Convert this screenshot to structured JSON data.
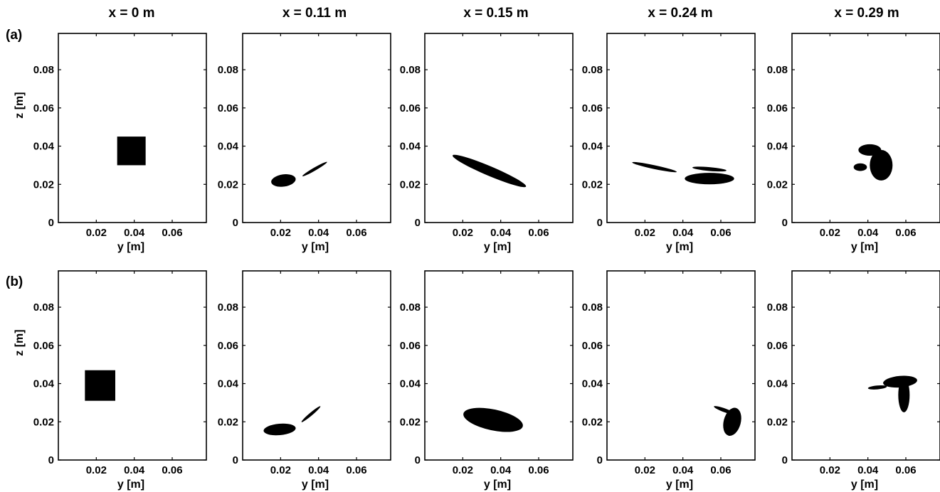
{
  "figure": {
    "column_titles": [
      "x = 0 m",
      "x = 0.11 m",
      "x = 0.15 m",
      "x = 0.24 m",
      "x = 0.29 m"
    ],
    "row_labels": [
      "(a)",
      "(b)"
    ]
  },
  "chart_data": [
    {
      "type": "scatter",
      "row": "(a)",
      "column": "x = 0 m",
      "xlabel": "y [m]",
      "ylabel": "z [m]",
      "xlim": [
        0,
        0.078
      ],
      "ylim": [
        0,
        0.099
      ],
      "xticks": [
        0.02,
        0.04,
        0.06
      ],
      "yticks": [
        0,
        0.02,
        0.04,
        0.06,
        0.08
      ],
      "blobs": [
        {
          "shape": "rect",
          "y": [
            0.031,
            0.046
          ],
          "z": [
            0.03,
            0.045
          ]
        }
      ]
    },
    {
      "type": "scatter",
      "row": "(a)",
      "column": "x = 0.11 m",
      "xlabel": "y [m]",
      "ylabel": "",
      "xlim": [
        0,
        0.078
      ],
      "ylim": [
        0,
        0.099
      ],
      "xticks": [
        0.02,
        0.04,
        0.06
      ],
      "yticks": [
        0,
        0.02,
        0.04,
        0.06,
        0.08
      ],
      "blobs": [
        {
          "shape": "ellipse",
          "y": 0.0215,
          "z": 0.022,
          "ry": 0.0065,
          "rz": 0.0032,
          "rot": -8
        },
        {
          "shape": "ellipse",
          "y": 0.038,
          "z": 0.028,
          "ry": 0.0075,
          "rz": 0.0008,
          "rot": -30
        }
      ]
    },
    {
      "type": "scatter",
      "row": "(a)",
      "column": "x = 0.15 m",
      "xlabel": "y [m]",
      "ylabel": "",
      "xlim": [
        0,
        0.078
      ],
      "ylim": [
        0,
        0.099
      ],
      "xticks": [
        0.02,
        0.04,
        0.06
      ],
      "yticks": [
        0,
        0.02,
        0.04,
        0.06,
        0.08
      ],
      "blobs": [
        {
          "shape": "ellipse",
          "y": 0.034,
          "z": 0.027,
          "ry": 0.021,
          "rz": 0.0025,
          "rot": 23
        }
      ]
    },
    {
      "type": "scatter",
      "row": "(a)",
      "column": "x = 0.24 m",
      "xlabel": "y [m]",
      "ylabel": "",
      "xlim": [
        0,
        0.078
      ],
      "ylim": [
        0,
        0.099
      ],
      "xticks": [
        0.02,
        0.04,
        0.06
      ],
      "yticks": [
        0,
        0.02,
        0.04,
        0.06,
        0.08
      ],
      "blobs": [
        {
          "shape": "ellipse",
          "y": 0.054,
          "z": 0.023,
          "ry": 0.013,
          "rz": 0.003,
          "rot": 0
        },
        {
          "shape": "ellipse",
          "y": 0.054,
          "z": 0.028,
          "ry": 0.009,
          "rz": 0.001,
          "rot": 5
        },
        {
          "shape": "ellipse",
          "y": 0.025,
          "z": 0.029,
          "ry": 0.012,
          "rz": 0.001,
          "rot": 12
        }
      ]
    },
    {
      "type": "scatter",
      "row": "(a)",
      "column": "x = 0.29 m",
      "xlabel": "y [m]",
      "ylabel": "",
      "xlim": [
        0,
        0.078
      ],
      "ylim": [
        0,
        0.099
      ],
      "xticks": [
        0.02,
        0.04,
        0.06
      ],
      "yticks": [
        0,
        0.02,
        0.04,
        0.06,
        0.08
      ],
      "blobs": [
        {
          "shape": "ellipse",
          "y": 0.047,
          "z": 0.03,
          "ry": 0.006,
          "rz": 0.008,
          "rot": 0
        },
        {
          "shape": "ellipse",
          "y": 0.041,
          "z": 0.038,
          "ry": 0.006,
          "rz": 0.003,
          "rot": 0
        },
        {
          "shape": "ellipse",
          "y": 0.036,
          "z": 0.029,
          "ry": 0.0035,
          "rz": 0.002,
          "rot": 0
        }
      ]
    },
    {
      "type": "scatter",
      "row": "(b)",
      "column": "x = 0 m",
      "xlabel": "y [m]",
      "ylabel": "z [m]",
      "xlim": [
        0,
        0.078
      ],
      "ylim": [
        0,
        0.099
      ],
      "xticks": [
        0.02,
        0.04,
        0.06
      ],
      "yticks": [
        0,
        0.02,
        0.04,
        0.06,
        0.08
      ],
      "blobs": [
        {
          "shape": "rect",
          "y": [
            0.014,
            0.03
          ],
          "z": [
            0.031,
            0.047
          ]
        }
      ]
    },
    {
      "type": "scatter",
      "row": "(b)",
      "column": "x = 0.11 m",
      "xlabel": "y [m]",
      "ylabel": "",
      "xlim": [
        0,
        0.078
      ],
      "ylim": [
        0,
        0.099
      ],
      "xticks": [
        0.02,
        0.04,
        0.06
      ],
      "yticks": [
        0,
        0.02,
        0.04,
        0.06,
        0.08
      ],
      "blobs": [
        {
          "shape": "ellipse",
          "y": 0.0195,
          "z": 0.016,
          "ry": 0.0085,
          "rz": 0.003,
          "rot": -5
        },
        {
          "shape": "ellipse",
          "y": 0.036,
          "z": 0.024,
          "ry": 0.0065,
          "rz": 0.0008,
          "rot": -40
        }
      ]
    },
    {
      "type": "scatter",
      "row": "(b)",
      "column": "x = 0.15 m",
      "xlabel": "y [m]",
      "ylabel": "",
      "xlim": [
        0,
        0.078
      ],
      "ylim": [
        0,
        0.099
      ],
      "xticks": [
        0.02,
        0.04,
        0.06
      ],
      "yticks": [
        0,
        0.02,
        0.04,
        0.06,
        0.08
      ],
      "blobs": [
        {
          "shape": "ellipse",
          "y": 0.036,
          "z": 0.021,
          "ry": 0.016,
          "rz": 0.0055,
          "rot": 12
        }
      ]
    },
    {
      "type": "scatter",
      "row": "(b)",
      "column": "x = 0.24 m",
      "xlabel": "y [m]",
      "ylabel": "",
      "xlim": [
        0,
        0.078
      ],
      "ylim": [
        0,
        0.099
      ],
      "xticks": [
        0.02,
        0.04,
        0.06
      ],
      "yticks": [
        0,
        0.02,
        0.04,
        0.06,
        0.08
      ],
      "blobs": [
        {
          "shape": "ellipse",
          "y": 0.066,
          "z": 0.02,
          "ry": 0.0045,
          "rz": 0.0075,
          "rot": 15
        },
        {
          "shape": "ellipse",
          "y": 0.062,
          "z": 0.026,
          "ry": 0.006,
          "rz": 0.001,
          "rot": 20
        }
      ]
    },
    {
      "type": "scatter",
      "row": "(b)",
      "column": "x = 0.29 m",
      "xlabel": "y [m]",
      "ylabel": "",
      "xlim": [
        0,
        0.078
      ],
      "ylim": [
        0,
        0.099
      ],
      "xticks": [
        0.02,
        0.04,
        0.06
      ],
      "yticks": [
        0,
        0.02,
        0.04,
        0.06,
        0.08
      ],
      "blobs": [
        {
          "shape": "ellipse",
          "y": 0.059,
          "z": 0.034,
          "ry": 0.003,
          "rz": 0.009,
          "rot": 0
        },
        {
          "shape": "ellipse",
          "y": 0.057,
          "z": 0.041,
          "ry": 0.009,
          "rz": 0.003,
          "rot": -5
        },
        {
          "shape": "ellipse",
          "y": 0.045,
          "z": 0.038,
          "ry": 0.005,
          "rz": 0.001,
          "rot": -5
        }
      ]
    }
  ]
}
